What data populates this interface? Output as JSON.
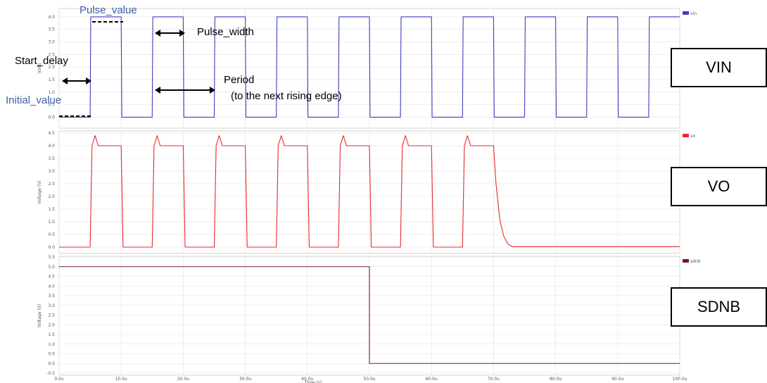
{
  "chart_data": {
    "type": "line",
    "xlabel": "Time (s)",
    "x_tick_labels": [
      "0.0u",
      "10.0u",
      "20.0u",
      "30.0u",
      "40.0u",
      "50.0u",
      "60.0u",
      "70.0u",
      "80.0u",
      "90.0u",
      "100.0u"
    ],
    "xlim": [
      0,
      100
    ],
    "panels": [
      {
        "legend": "vin",
        "color": "#3b3fbf",
        "ylabel": "Volts",
        "ylim": [
          -0.1,
          4.5
        ],
        "y_ticks": [
          0.0,
          0.5,
          1.0,
          1.5,
          2.0,
          2.5,
          3.0,
          3.5,
          4.0
        ],
        "y_tick_labels": [
          "0.0",
          "0.5",
          "1.0",
          "1.5",
          "2.0",
          "2.5",
          "3.0",
          "3.5",
          "4.0"
        ],
        "series": [
          {
            "name": "vin",
            "x": [
              0,
              5,
              5.1,
              10,
              10.1,
              15,
              15.1,
              20,
              20.1,
              25,
              25.1,
              30,
              30.1,
              35,
              35.1,
              40,
              40.1,
              45,
              45.1,
              50,
              50.1,
              55,
              55.1,
              60,
              60.1,
              65,
              65.1,
              70,
              70.1,
              75,
              75.1,
              80,
              80.1,
              85,
              85.1,
              90,
              90.1,
              95,
              95.1,
              100
            ],
            "y": [
              0,
              0,
              4,
              4,
              0,
              0,
              4,
              4,
              0,
              0,
              4,
              4,
              0,
              0,
              4,
              4,
              0,
              0,
              4,
              4,
              0,
              0,
              4,
              4,
              0,
              0,
              4,
              4,
              0,
              0,
              4,
              4,
              0,
              0,
              4,
              4,
              0,
              0,
              4,
              4
            ]
          }
        ]
      },
      {
        "legend": "vo",
        "color": "#e8282d",
        "ylabel": "Voltage (V)",
        "ylim": [
          -0.05,
          4.5
        ],
        "y_ticks": [
          0.0,
          0.5,
          1.0,
          1.5,
          2.0,
          2.5,
          3.0,
          3.5,
          4.0,
          4.5
        ],
        "y_tick_labels": [
          "0.0",
          "0.5",
          "1.0",
          "1.5",
          "2.0",
          "2.5",
          "3.0",
          "3.5",
          "4.0",
          "4.5"
        ],
        "series": [
          {
            "name": "vo",
            "x": [
              0,
              5,
              5.3,
              5.8,
              6.3,
              10,
              10.3,
              15,
              15.3,
              15.8,
              16.3,
              20,
              20.3,
              25,
              25.3,
              25.8,
              26.3,
              30,
              30.3,
              35,
              35.3,
              35.8,
              36.3,
              40,
              40.3,
              45,
              45.3,
              45.8,
              46.3,
              50,
              50.3,
              55,
              55.3,
              55.8,
              56.3,
              60,
              60.3,
              65,
              65.3,
              65.8,
              66.3,
              70,
              70.4,
              71,
              71.6,
              72.3,
              73,
              100
            ],
            "y": [
              0,
              0,
              4,
              4.4,
              4,
              4,
              0,
              0,
              4,
              4.4,
              4,
              4,
              0,
              0,
              4,
              4.4,
              4,
              4,
              0,
              0,
              4,
              4.4,
              4,
              4,
              0,
              0,
              4,
              4.4,
              4,
              4,
              0,
              0,
              4,
              4.4,
              4,
              4,
              0,
              0,
              4,
              4.4,
              4,
              4,
              2.5,
              1.1,
              0.45,
              0.12,
              0.02,
              0.02
            ]
          }
        ]
      },
      {
        "legend": "sdnb",
        "color": "#7a1a1a",
        "ylabel": "Voltage (V)",
        "ylim": [
          -0.05,
          5.5
        ],
        "y_ticks": [
          0.0,
          0.5,
          1.0,
          1.5,
          2.0,
          2.5,
          3.0,
          3.5,
          4.0,
          4.5,
          5.0,
          5.5
        ],
        "y_tick_labels": [
          "0.0",
          "0.5",
          "1.0",
          "1.5",
          "2.0",
          "2.5",
          "3.0",
          "3.5",
          "4.0",
          "4.5",
          "5.0",
          "5.5"
        ],
        "extra_tick_labels": [
          "-0.5"
        ],
        "series": [
          {
            "name": "sdnb",
            "x": [
              0,
              50,
              50,
              100
            ],
            "y": [
              5,
              5,
              0,
              0
            ]
          }
        ]
      }
    ]
  },
  "annotations": {
    "pulse_value": "Pulse_value",
    "pulse_width": "Pulse_width",
    "start_delay": "Start_delay",
    "initial_value": "Initial_value",
    "period": "Period",
    "period_note": "(to the next rising edge)"
  },
  "labels": {
    "vin": "VIN",
    "vo": "VO",
    "sdnb": "SDNB"
  }
}
